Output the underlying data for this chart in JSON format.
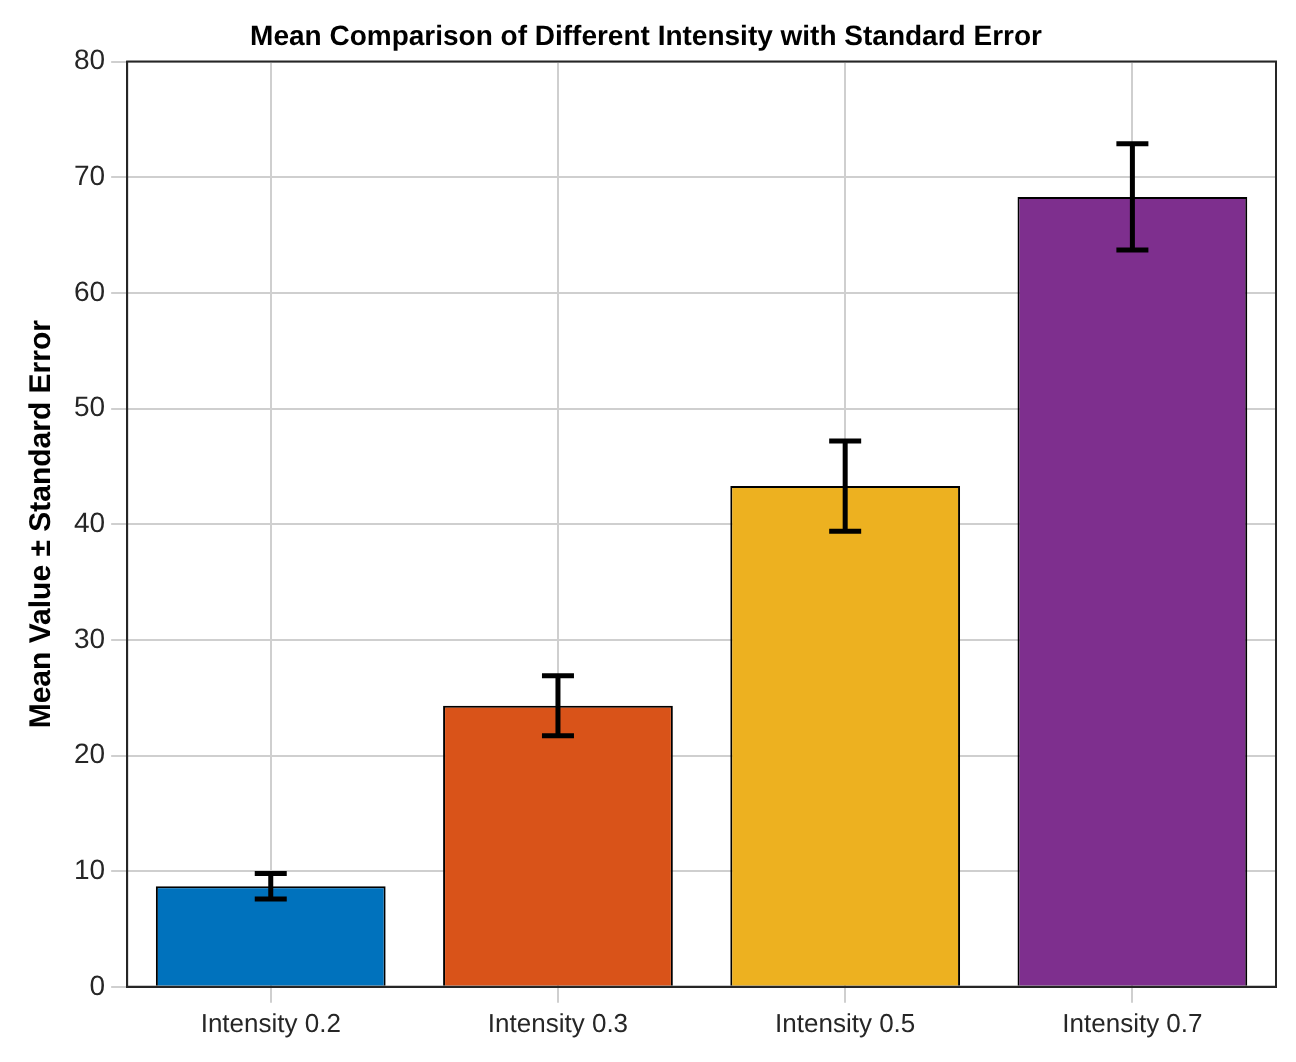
{
  "chart_data": {
    "type": "bar",
    "title": "Mean Comparison of Different Intensity with Standard Error",
    "ylabel": "Mean Value ± Standard Error",
    "categories": [
      "Intensity 0.2",
      "Intensity 0.3",
      "Intensity 0.5",
      "Intensity 0.7"
    ],
    "values": [
      8.7,
      24.3,
      43.3,
      68.3
    ],
    "errors": [
      1.1,
      2.6,
      3.9,
      4.6
    ],
    "colors": [
      "#0072bd",
      "#d95319",
      "#edb120",
      "#7e2f8e"
    ],
    "ylim": [
      0,
      80
    ],
    "yticks": [
      0,
      10,
      20,
      30,
      40,
      50,
      60,
      70,
      80
    ],
    "grid": true,
    "legend": false
  }
}
